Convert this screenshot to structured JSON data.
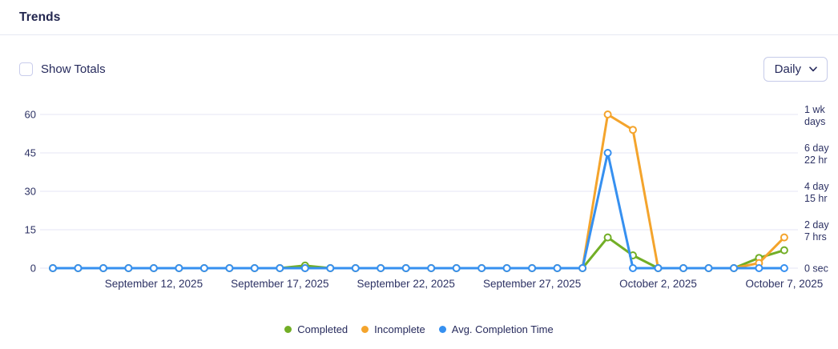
{
  "header": {
    "title": "Trends"
  },
  "controls": {
    "show_totals_label": "Show Totals",
    "show_totals_checked": false,
    "granularity_value": "Daily"
  },
  "legend": [
    {
      "label": "Completed",
      "color": "#72ae26"
    },
    {
      "label": "Incomplete",
      "color": "#f4a42c"
    },
    {
      "label": "Avg. Completion Time",
      "color": "#3690f0"
    }
  ],
  "chart_data": {
    "type": "line",
    "title": "Trends",
    "granularity": "Daily",
    "x_dates": [
      "2025-09-08",
      "2025-09-09",
      "2025-09-10",
      "2025-09-11",
      "2025-09-12",
      "2025-09-13",
      "2025-09-14",
      "2025-09-15",
      "2025-09-16",
      "2025-09-17",
      "2025-09-18",
      "2025-09-19",
      "2025-09-20",
      "2025-09-21",
      "2025-09-22",
      "2025-09-23",
      "2025-09-24",
      "2025-09-25",
      "2025-09-26",
      "2025-09-27",
      "2025-09-28",
      "2025-09-29",
      "2025-09-30",
      "2025-10-01",
      "2025-10-02",
      "2025-10-03",
      "2025-10-04",
      "2025-10-05",
      "2025-10-06",
      "2025-10-07"
    ],
    "x_tick_labels": [
      {
        "index": 4,
        "label": "September 12, 2025"
      },
      {
        "index": 9,
        "label": "September 17, 2025"
      },
      {
        "index": 14,
        "label": "September 22, 2025"
      },
      {
        "index": 19,
        "label": "September 27, 2025"
      },
      {
        "index": 24,
        "label": "October 2, 2025"
      },
      {
        "index": 29,
        "label": "October 7, 2025"
      }
    ],
    "series": [
      {
        "name": "Completed",
        "color": "#72ae26",
        "axis": "left",
        "values": [
          0,
          0,
          0,
          0,
          0,
          0,
          0,
          0,
          0,
          0,
          1,
          0,
          0,
          0,
          0,
          0,
          0,
          0,
          0,
          0,
          0,
          0,
          12,
          5,
          0,
          0,
          0,
          0,
          4,
          7
        ]
      },
      {
        "name": "Incomplete",
        "color": "#f4a42c",
        "axis": "left",
        "values": [
          0,
          0,
          0,
          0,
          0,
          0,
          0,
          0,
          0,
          0,
          0,
          0,
          0,
          0,
          0,
          0,
          0,
          0,
          0,
          0,
          0,
          0,
          60,
          54,
          0,
          0,
          0,
          0,
          2,
          12
        ]
      },
      {
        "name": "Avg. Completion Time",
        "color": "#3690f0",
        "axis": "right",
        "values": [
          0,
          0,
          0,
          0,
          0,
          0,
          0,
          0,
          0,
          0,
          0,
          0,
          0,
          0,
          0,
          0,
          0,
          0,
          0,
          0,
          0,
          0,
          45,
          0,
          0,
          0,
          0,
          0,
          0,
          0
        ],
        "note": "plotted on right duration axis; peak aligns with 6 day 22 hr tick"
      }
    ],
    "left_axis": {
      "range": [
        0,
        60
      ],
      "ticks": [
        0,
        15,
        30,
        45,
        60
      ]
    },
    "right_axis": {
      "ticks": [
        {
          "value": 0,
          "lines": [
            "0 sec"
          ]
        },
        {
          "value": 15,
          "lines": [
            "2 day",
            "7 hrs"
          ]
        },
        {
          "value": 30,
          "lines": [
            "4 day",
            "15 hr"
          ]
        },
        {
          "value": 45,
          "lines": [
            "6 day",
            "22 hr"
          ]
        },
        {
          "value": 60,
          "lines": [
            "1 wk",
            "days"
          ]
        }
      ]
    },
    "grid": true,
    "legend_position": "bottom",
    "colors": {
      "grid": "#e9ebf7",
      "axis_text": "#2d3264",
      "marker_fill": "#ffffff"
    }
  }
}
